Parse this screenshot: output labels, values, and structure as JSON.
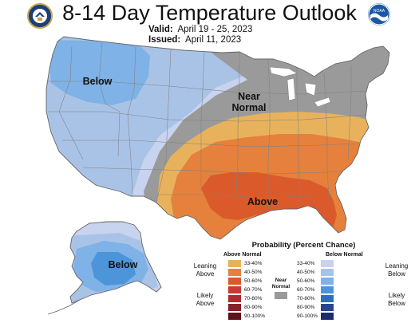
{
  "title": "8-14 Day Temperature Outlook",
  "valid_label": "Valid:",
  "valid_value": "April 19 - 25, 2023",
  "issued_label": "Issued:",
  "issued_value": "April 11, 2023",
  "logos": {
    "left": "doc-seal-icon",
    "right": "noaa-logo-icon",
    "noaa_text": "NOAA"
  },
  "map_labels": {
    "below_west": "Below",
    "near_normal": "Near\nNormal",
    "above": "Above",
    "below_alaska": "Below"
  },
  "legend": {
    "title": "Probability (Percent Chance)",
    "above_header": "Above Normal",
    "below_header": "Below Normal",
    "near_label": "Near\nNormal",
    "leaning_above": "Leaning\nAbove",
    "likely_above": "Likely\nAbove",
    "leaning_below": "Leaning\nBelow",
    "likely_below": "Likely\nBelow",
    "ranges": [
      "33-40%",
      "40-50%",
      "50-60%",
      "60-70%",
      "70-80%",
      "80-90%",
      "90-100%"
    ],
    "above_colors": [
      "#e8b25c",
      "#e5813c",
      "#db5a2b",
      "#c93a33",
      "#b02a2f",
      "#8a1f27",
      "#5c1218"
    ],
    "below_colors": [
      "#c8d3ef",
      "#a9c3e7",
      "#7fb2e6",
      "#4d95d9",
      "#2f6dbb",
      "#27458f",
      "#1f2a6b"
    ],
    "near_color": "#9a9a9a"
  },
  "colors": {
    "below_33": "#c8d3ef",
    "below_40": "#a9c3e7",
    "below_50": "#7fb2e6",
    "below_60": "#4d95d9",
    "near": "#9a9a9a",
    "above_33": "#e8b25c",
    "above_40": "#e5813c",
    "above_50": "#db5a2b"
  }
}
